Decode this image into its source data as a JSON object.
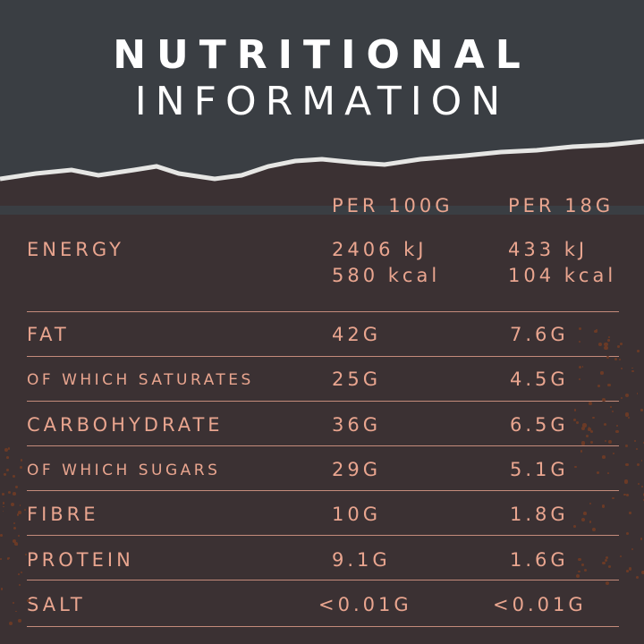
{
  "title": {
    "line1": "NUTRITIONAL",
    "line2": "INFORMATION"
  },
  "colors": {
    "top_background": "#3a3e43",
    "bottom_background": "#3b3133",
    "text": "#e9a58f",
    "title_text": "#ffffff"
  },
  "columns": {
    "per_100g": "PER 100G",
    "per_serving": "PER 18G"
  },
  "energy": {
    "label": "ENERGY",
    "per_100g_kj": "2406 kJ",
    "per_100g_kcal": "580 kcal",
    "per_serving_kj": "433 kJ",
    "per_serving_kcal": "104 kcal"
  },
  "rows": [
    {
      "label": "FAT",
      "per_100g": "42G",
      "per_serving": "7.6G",
      "sub": false
    },
    {
      "label": "OF WHICH SATURATES",
      "per_100g": "25G",
      "per_serving": "4.5G",
      "sub": true
    },
    {
      "label": "CARBOHYDRATE",
      "per_100g": "36G",
      "per_serving": "6.5G",
      "sub": false
    },
    {
      "label": "OF WHICH SUGARS",
      "per_100g": "29G",
      "per_serving": "5.1G",
      "sub": true
    },
    {
      "label": "FIBRE",
      "per_100g": "10G",
      "per_serving": "1.8G",
      "sub": false
    },
    {
      "label": "PROTEIN",
      "per_100g": "9.1G",
      "per_serving": "1.6G",
      "sub": false
    },
    {
      "label": "SALT",
      "per_100g": "<0.01G",
      "per_serving": "<0.01G",
      "sub": false
    }
  ]
}
